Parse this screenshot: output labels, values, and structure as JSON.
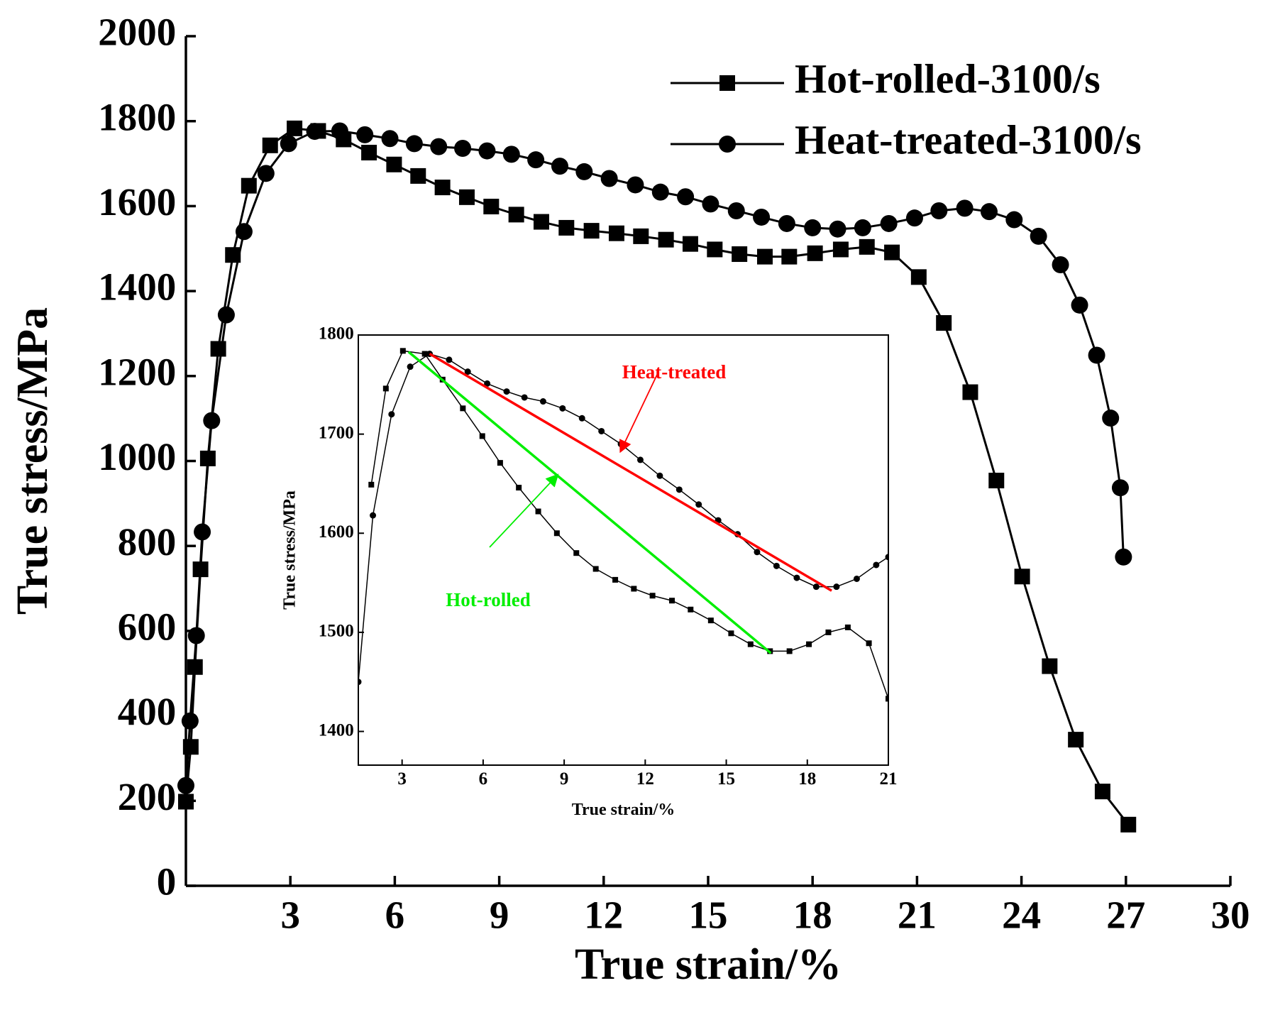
{
  "chart_data": [
    {
      "type": "line",
      "xlabel": "True strain/%",
      "ylabel": "True stress/MPa",
      "xlim": [
        0,
        30
      ],
      "ylim": [
        0,
        2000
      ],
      "xticks": [
        3,
        6,
        9,
        12,
        15,
        18,
        21,
        24,
        27,
        30
      ],
      "yticks": [
        0,
        200,
        400,
        600,
        800,
        1000,
        1200,
        1400,
        1600,
        1800,
        2000
      ],
      "legend": "upper right",
      "series": [
        {
          "name": "Hot-rolled-3100/s",
          "color": "#000000",
          "marker": "square",
          "x": [
            0,
            0.14,
            0.26,
            0.42,
            0.63,
            0.93,
            1.35,
            1.81,
            2.42,
            3.12,
            3.8,
            4.53,
            5.26,
            5.98,
            6.67,
            7.37,
            8.07,
            8.77,
            9.49,
            10.21,
            10.93,
            11.65,
            12.37,
            13.07,
            13.79,
            14.49,
            15.19,
            15.9,
            16.63,
            17.33,
            18.07,
            18.81,
            19.56,
            20.28,
            21.05,
            21.77,
            22.53,
            23.28,
            24.02,
            24.81,
            25.56,
            26.33,
            27.07
          ],
          "values": [
            198,
            327,
            515,
            745,
            1006,
            1264,
            1485,
            1648,
            1743,
            1783,
            1777,
            1757,
            1726,
            1698,
            1671,
            1644,
            1621,
            1599,
            1580,
            1563,
            1549,
            1542,
            1536,
            1529,
            1521,
            1511,
            1498,
            1487,
            1481,
            1481,
            1489,
            1498,
            1504,
            1491,
            1433,
            1325,
            1162,
            954,
            728,
            517,
            344,
            222,
            144
          ]
        },
        {
          "name": "Heat-treated-3100/s",
          "color": "#000000",
          "marker": "circle",
          "x": [
            0,
            0.12,
            0.3,
            0.47,
            0.74,
            1.16,
            1.67,
            2.3,
            2.95,
            3.7,
            4.42,
            5.14,
            5.86,
            6.56,
            7.26,
            7.95,
            8.65,
            9.35,
            10.05,
            10.74,
            11.44,
            12.16,
            12.91,
            13.63,
            14.35,
            15.07,
            15.81,
            16.53,
            17.26,
            18.0,
            18.72,
            19.44,
            20.19,
            20.93,
            21.63,
            22.37,
            23.07,
            23.79,
            24.49,
            25.12,
            25.67,
            26.16,
            26.56,
            26.84,
            26.93
          ],
          "values": [
            236,
            388,
            589,
            833,
            1095,
            1344,
            1540,
            1677,
            1747,
            1776,
            1777,
            1768,
            1759,
            1747,
            1740,
            1736,
            1730,
            1722,
            1709,
            1694,
            1681,
            1665,
            1650,
            1633,
            1622,
            1605,
            1589,
            1574,
            1559,
            1549,
            1546,
            1549,
            1559,
            1572,
            1589,
            1595,
            1587,
            1568,
            1529,
            1462,
            1367,
            1249,
            1101,
            937,
            774
          ]
        }
      ]
    },
    {
      "type": "line",
      "xlabel": "True strain/%",
      "ylabel": "True stress/MPa",
      "xlim": [
        1.38,
        21
      ],
      "ylim": [
        1366,
        1800
      ],
      "xticks": [
        3,
        6,
        9,
        12,
        15,
        18,
        21
      ],
      "yticks": [
        1400,
        1500,
        1600,
        1700,
        1800
      ],
      "series": [
        {
          "name": "Hot-rolled",
          "color": "#000000",
          "marker": "square",
          "x": [
            1.86,
            2.4,
            3.03,
            3.84,
            4.5,
            5.25,
            5.97,
            6.63,
            7.32,
            8.04,
            8.73,
            9.45,
            10.17,
            10.89,
            11.58,
            12.27,
            12.99,
            13.68,
            14.43,
            15.18,
            15.9,
            16.62,
            17.34,
            18.06,
            18.78,
            19.5,
            20.28,
            21
          ],
          "values": [
            1649,
            1746,
            1784,
            1781,
            1755,
            1726,
            1698,
            1671,
            1646,
            1622,
            1600,
            1580,
            1564,
            1553,
            1544,
            1537,
            1532,
            1523,
            1512,
            1499,
            1488,
            1481,
            1481,
            1488,
            1500,
            1505,
            1489,
            1433
          ]
        },
        {
          "name": "Heat-treated",
          "color": "#000000",
          "marker": "circle",
          "x": [
            1.38,
            1.92,
            2.61,
            3.3,
            4.02,
            4.74,
            5.43,
            6.15,
            6.87,
            7.53,
            8.22,
            8.94,
            9.66,
            10.38,
            11.1,
            11.82,
            12.54,
            13.26,
            13.98,
            14.7,
            15.42,
            16.14,
            16.86,
            17.61,
            18.33,
            19.08,
            19.83,
            20.55,
            21
          ],
          "values": [
            1450,
            1618,
            1720,
            1768,
            1781,
            1775,
            1763,
            1751,
            1743,
            1737,
            1733,
            1726,
            1716,
            1703,
            1690,
            1674,
            1658,
            1644,
            1629,
            1613,
            1599,
            1581,
            1567,
            1555,
            1546,
            1546,
            1554,
            1568,
            1576
          ]
        }
      ],
      "annotations": [
        {
          "text": "Heat-treated",
          "color": "#ff0000",
          "line": {
            "x": [
              4.02,
              18.9
            ],
            "y": [
              1781,
              1542
            ]
          }
        },
        {
          "text": "Hot-rolled",
          "color": "#00ee00",
          "line": {
            "x": [
              3.24,
              16.65
            ],
            "y": [
              1783,
              1479
            ]
          }
        }
      ]
    }
  ]
}
